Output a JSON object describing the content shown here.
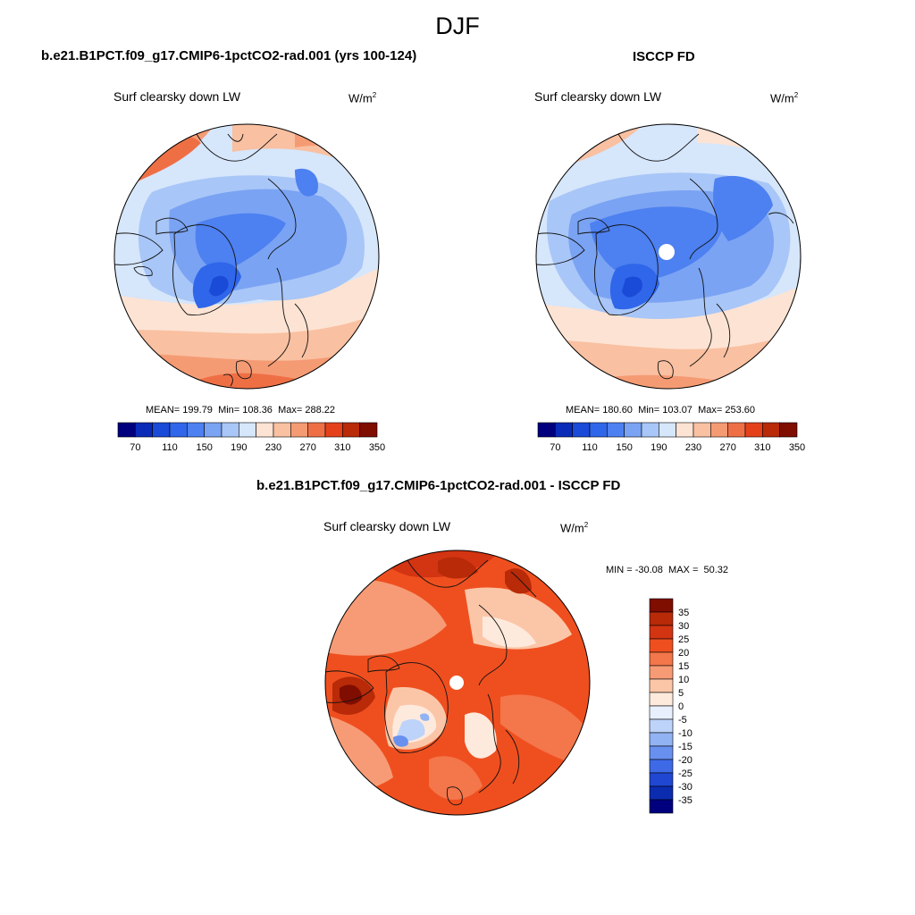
{
  "figure": {
    "title": "DJF"
  },
  "panels": [
    {
      "title": "b.e21.B1PCT.f09_g17.CMIP6-1pctCO2-rad.001 (yrs 100-124)",
      "variable": "Surf clearsky down LW",
      "units_base": "W/m",
      "units_exp": "2",
      "stats": {
        "mean_label": "MEAN=",
        "mean": "199.79",
        "min_label": "Min=",
        "min": "108.36",
        "max_label": "Max=",
        "max": "288.22"
      },
      "colorbar_labels": [
        "70",
        "110",
        "150",
        "190",
        "230",
        "270",
        "310",
        "350"
      ]
    },
    {
      "title": "ISCCP FD",
      "variable": "Surf clearsky down LW",
      "units_base": "W/m",
      "units_exp": "2",
      "stats": {
        "mean_label": "MEAN=",
        "mean": "180.60",
        "min_label": "Min=",
        "min": "103.07",
        "max_label": "Max=",
        "max": "253.60"
      },
      "colorbar_labels": [
        "70",
        "110",
        "150",
        "190",
        "230",
        "270",
        "310",
        "350"
      ]
    },
    {
      "title": "b.e21.B1PCT.f09_g17.CMIP6-1pctCO2-rad.001 - ISCCP FD",
      "variable": "Surf clearsky down LW",
      "units_base": "W/m",
      "units_exp": "2",
      "stats": {
        "min_label": "MIN =",
        "min": "-30.08",
        "max_label": "MAX =",
        "max": "50.32"
      },
      "colorbar_labels": [
        "35",
        "30",
        "25",
        "20",
        "15",
        "10",
        "5",
        "0",
        "-5",
        "-10",
        "-15",
        "-20",
        "-25",
        "-30",
        "-35"
      ]
    }
  ],
  "colors": {
    "abs_scale": [
      "#00007f",
      "#0a2bb8",
      "#1a4ad8",
      "#2f66ea",
      "#4d80f0",
      "#7aa3f3",
      "#a8c6f7",
      "#d6e6fb",
      "#fde3d3",
      "#f9c0a1",
      "#f59b74",
      "#ef6f45",
      "#e4411b",
      "#b82a08",
      "#7f0d00"
    ],
    "diff_scale": [
      "#7f0d00",
      "#b82a08",
      "#d33412",
      "#ef4f1f",
      "#f4764b",
      "#f79b76",
      "#fbc6a8",
      "#feeadd",
      "#e8f0fd",
      "#bdd3f9",
      "#92b3f3",
      "#6890ef",
      "#3e6ae8",
      "#1f47d2",
      "#0c2cb0",
      "#00007f"
    ],
    "land_outline": "#111111"
  }
}
